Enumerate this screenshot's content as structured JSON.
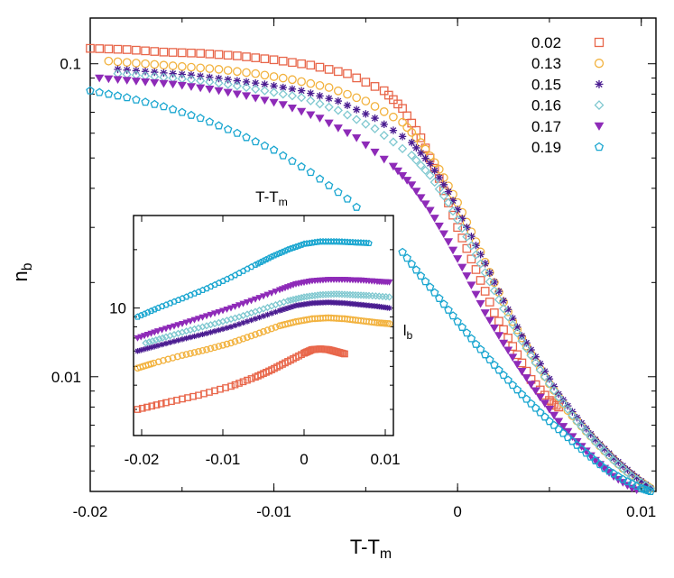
{
  "chart_data": [
    {
      "type": "scatter",
      "title": "",
      "xlabel": "T-T",
      "xlabel_subscript": "m",
      "ylabel": "n",
      "ylabel_subscript": "b",
      "x_scale": "linear",
      "y_scale": "log",
      "xlim": [
        -0.02,
        0.0108
      ],
      "ylim": [
        0.0043,
        0.14
      ],
      "xticks": [
        -0.02,
        -0.01,
        0,
        0.01
      ],
      "xtick_labels": [
        "-0.02",
        "-0.01",
        "0",
        "0.01"
      ],
      "yticks": [
        0.01,
        0.1
      ],
      "ytick_labels": [
        "0.01",
        "0.1"
      ],
      "legend_position": "top-right",
      "series": [
        {
          "name": "0.02",
          "color": "#e8664a",
          "marker": "square",
          "x": [
            -0.02,
            -0.018,
            -0.016,
            -0.014,
            -0.012,
            -0.01,
            -0.008,
            -0.006,
            -0.004,
            -0.003,
            -0.002,
            -0.001,
            0,
            0.001,
            0.002,
            0.003,
            0.004,
            0.005,
            0.0055
          ],
          "y": [
            0.112,
            0.111,
            0.109,
            0.108,
            0.106,
            0.103,
            0.099,
            0.093,
            0.082,
            0.072,
            0.058,
            0.043,
            0.03,
            0.022,
            0.016,
            0.0125,
            0.0098,
            0.0084,
            0.008
          ]
        },
        {
          "name": "0.13",
          "color": "#f2b23e",
          "marker": "circle",
          "x": [
            -0.019,
            -0.017,
            -0.015,
            -0.013,
            -0.011,
            -0.009,
            -0.007,
            -0.005,
            -0.003,
            -0.002,
            -0.001,
            0,
            0.001,
            0.002,
            0.003,
            0.004,
            0.005,
            0.006,
            0.007,
            0.008,
            0.009,
            0.01,
            0.0105
          ],
          "y": [
            0.102,
            0.1,
            0.098,
            0.096,
            0.093,
            0.089,
            0.084,
            0.076,
            0.065,
            0.056,
            0.046,
            0.036,
            0.027,
            0.02,
            0.015,
            0.0118,
            0.0095,
            0.0078,
            0.0067,
            0.0058,
            0.0051,
            0.0046,
            0.0044
          ]
        },
        {
          "name": "0.15",
          "color": "#4b1d91",
          "marker": "star",
          "x": [
            -0.0185,
            -0.0165,
            -0.0145,
            -0.0125,
            -0.0105,
            -0.0085,
            -0.0065,
            -0.0045,
            -0.0025,
            -0.0015,
            -0.0005,
            0.0005,
            0.0015,
            0.0025,
            0.0035,
            0.0045,
            0.0055,
            0.0065,
            0.0075,
            0.0085,
            0.0095,
            0.0105
          ],
          "y": [
            0.096,
            0.094,
            0.092,
            0.089,
            0.086,
            0.082,
            0.076,
            0.067,
            0.056,
            0.048,
            0.039,
            0.03,
            0.023,
            0.0175,
            0.0135,
            0.011,
            0.0088,
            0.0074,
            0.0063,
            0.0055,
            0.0049,
            0.0044
          ]
        },
        {
          "name": "0.16",
          "color": "#7fc8d0",
          "marker": "diamond",
          "x": [
            -0.0185,
            -0.0165,
            -0.0145,
            -0.0125,
            -0.0105,
            -0.0085,
            -0.0065,
            -0.0045,
            -0.0025,
            -0.0015,
            -0.0005,
            0.0005,
            0.0015,
            0.0025,
            0.0035,
            0.0045,
            0.0055,
            0.0065,
            0.0075,
            0.0085,
            0.0095,
            0.0105
          ],
          "y": [
            0.093,
            0.091,
            0.089,
            0.086,
            0.082,
            0.078,
            0.071,
            0.062,
            0.051,
            0.044,
            0.036,
            0.028,
            0.0215,
            0.0165,
            0.013,
            0.0105,
            0.0086,
            0.0072,
            0.0062,
            0.0054,
            0.0048,
            0.0044
          ]
        },
        {
          "name": "0.17",
          "color": "#8e2bb8",
          "marker": "triangle-down",
          "x": [
            -0.0195,
            -0.0175,
            -0.0155,
            -0.0135,
            -0.0115,
            -0.0095,
            -0.0075,
            -0.0055,
            -0.0035,
            -0.0025,
            -0.0015,
            -0.0005,
            0.0005,
            0.0015,
            0.0025,
            0.0035,
            0.0045,
            0.0055,
            0.0065,
            0.0075,
            0.0085,
            0.0095,
            0.0105
          ],
          "y": [
            0.09,
            0.088,
            0.086,
            0.083,
            0.079,
            0.074,
            0.067,
            0.058,
            0.047,
            0.041,
            0.034,
            0.027,
            0.021,
            0.016,
            0.0128,
            0.0104,
            0.0086,
            0.0072,
            0.0062,
            0.0054,
            0.0048,
            0.0044,
            0.0042
          ]
        },
        {
          "name": "0.19",
          "color": "#1aa6d0",
          "marker": "pentagon",
          "x": [
            -0.02,
            -0.018,
            -0.016,
            -0.014,
            -0.012,
            -0.01,
            -0.008,
            -0.006,
            -0.004,
            -0.003,
            -0.002,
            -0.001,
            0,
            0.001,
            0.002,
            0.003,
            0.004,
            0.005,
            0.006,
            0.007,
            0.008,
            0.009,
            0.01,
            0.0105
          ],
          "y": [
            0.082,
            0.078,
            0.073,
            0.067,
            0.06,
            0.053,
            0.045,
            0.037,
            0.029,
            0.025,
            0.021,
            0.0178,
            0.015,
            0.0127,
            0.0109,
            0.0094,
            0.0082,
            0.0072,
            0.0064,
            0.0057,
            0.0051,
            0.0047,
            0.0044,
            0.0043
          ]
        }
      ]
    },
    {
      "type": "scatter",
      "title": "",
      "xlabel": "T-T",
      "xlabel_subscript": "m",
      "ylabel": "l",
      "ylabel_subscript": "b",
      "x_scale": "linear",
      "y_scale": "log",
      "xlim": [
        -0.021,
        0.011
      ],
      "ylim": [
        2.2,
        30
      ],
      "xticks": [
        -0.02,
        -0.01,
        0,
        0.01
      ],
      "xtick_labels": [
        "-0.02",
        "-0.01",
        "0",
        "0.01"
      ],
      "yticks": [
        10
      ],
      "ytick_labels": [
        "10"
      ],
      "series": [
        {
          "name": "0.02",
          "x": [
            -0.0205,
            -0.017,
            -0.013,
            -0.009,
            -0.006,
            -0.004,
            -0.002,
            0,
            0.001,
            0.002,
            0.003,
            0.004,
            0.005
          ],
          "y": [
            3.0,
            3.25,
            3.55,
            3.95,
            4.4,
            4.8,
            5.3,
            5.85,
            6.1,
            6.15,
            6.1,
            5.95,
            5.8
          ]
        },
        {
          "name": "0.13",
          "x": [
            -0.0205,
            -0.0185,
            -0.015,
            -0.012,
            -0.009,
            -0.006,
            -0.003,
            -0.001,
            0.001,
            0.003,
            0.005,
            0.007,
            0.009,
            0.0105
          ],
          "y": [
            4.9,
            5.2,
            5.7,
            6.1,
            6.6,
            7.3,
            8.1,
            8.5,
            8.8,
            8.9,
            8.8,
            8.6,
            8.4,
            8.3
          ]
        },
        {
          "name": "0.15",
          "x": [
            -0.0205,
            -0.018,
            -0.015,
            -0.012,
            -0.009,
            -0.006,
            -0.003,
            -0.001,
            0.001,
            0.003,
            0.005,
            0.007,
            0.009,
            0.0105
          ],
          "y": [
            6.0,
            6.4,
            6.9,
            7.4,
            8.0,
            8.8,
            9.7,
            10.3,
            10.6,
            10.7,
            10.6,
            10.4,
            10.2,
            10.0
          ]
        },
        {
          "name": "0.16",
          "x": [
            -0.0195,
            -0.017,
            -0.014,
            -0.011,
            -0.008,
            -0.005,
            -0.002,
            0,
            0.002,
            0.004,
            0.006,
            0.008,
            0.0105
          ],
          "y": [
            6.6,
            7.1,
            7.7,
            8.3,
            9.0,
            9.9,
            10.9,
            11.4,
            11.7,
            11.8,
            11.7,
            11.6,
            11.4
          ]
        },
        {
          "name": "0.17",
          "x": [
            -0.0205,
            -0.018,
            -0.015,
            -0.012,
            -0.009,
            -0.006,
            -0.003,
            -0.001,
            0.001,
            0.003,
            0.005,
            0.007,
            0.009,
            0.0105
          ],
          "y": [
            7.0,
            7.6,
            8.3,
            9.1,
            10.0,
            11.1,
            12.4,
            13.3,
            13.8,
            14.0,
            14.0,
            13.9,
            13.7,
            13.6
          ]
        },
        {
          "name": "0.19",
          "x": [
            -0.0205,
            -0.018,
            -0.015,
            -0.012,
            -0.009,
            -0.006,
            -0.004,
            -0.002,
            0,
            0.002,
            0.004,
            0.006,
            0.008
          ],
          "y": [
            9.0,
            10.0,
            11.2,
            12.6,
            14.4,
            16.7,
            18.4,
            20.0,
            21.4,
            22.0,
            22.0,
            21.8,
            21.6
          ]
        }
      ]
    }
  ]
}
